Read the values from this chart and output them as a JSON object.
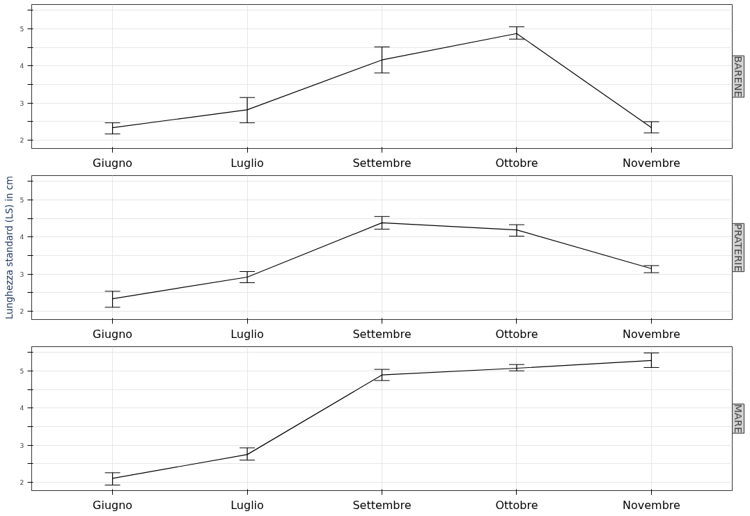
{
  "chart_data": [
    {
      "type": "line",
      "title": "BARENE",
      "categories": [
        "Giugno",
        "Luglio",
        "Settembre",
        "Ottobre",
        "Novembre"
      ],
      "series": [
        {
          "color": "#000000",
          "values": [
            2.34,
            2.82,
            4.16,
            4.87,
            2.34
          ],
          "errors": [
            [
              2.17,
              2.47
            ],
            [
              2.47,
              3.15
            ],
            [
              3.81,
              4.51
            ],
            [
              4.72,
              5.05
            ],
            [
              2.2,
              2.5
            ]
          ]
        }
      ],
      "ylim": [
        1.78,
        5.65
      ],
      "yticks": [
        2,
        {
          "value": 2.5,
          "label": null
        },
        3,
        {
          "value": 3.5,
          "label": null
        },
        4,
        {
          "value": 4.5,
          "label": null
        },
        5,
        {
          "value": 5.5,
          "label": null
        }
      ],
      "grid": true,
      "marker": "none",
      "line_style": "solid"
    },
    {
      "type": "line",
      "title": "PRATERIE",
      "ylabel": "Lunghezza standard (LS) in cm",
      "categories": [
        "Giugno",
        "Luglio",
        "Settembre",
        "Ottobre",
        "Novembre"
      ],
      "series": [
        {
          "color": "#000000",
          "values": [
            2.34,
            2.92,
            4.38,
            4.19,
            3.15
          ],
          "errors": [
            [
              2.11,
              2.54
            ],
            [
              2.77,
              3.07
            ],
            [
              4.21,
              4.55
            ],
            [
              4.02,
              4.33
            ],
            [
              3.04,
              3.23
            ]
          ]
        }
      ],
      "ylim": [
        1.78,
        5.65
      ],
      "yticks": [
        2,
        {
          "value": 2.5,
          "label": null
        },
        3,
        {
          "value": 3.5,
          "label": null
        },
        4,
        {
          "value": 4.5,
          "label": null
        },
        5,
        {
          "value": 5.5,
          "label": null
        }
      ],
      "grid": true,
      "marker": "none",
      "line_style": "solid"
    },
    {
      "type": "line",
      "title": "MARE",
      "categories": [
        "Giugno",
        "Luglio",
        "Settembre",
        "Ottobre",
        "Novembre"
      ],
      "series": [
        {
          "color": "#000000",
          "values": [
            2.11,
            2.75,
            4.89,
            5.07,
            5.28
          ],
          "errors": [
            [
              1.93,
              2.26
            ],
            [
              2.6,
              2.93
            ],
            [
              4.74,
              5.04
            ],
            [
              5.0,
              5.17
            ],
            [
              5.09,
              5.48
            ]
          ]
        }
      ],
      "ylim": [
        1.78,
        5.65
      ],
      "yticks": [
        2,
        {
          "value": 2.5,
          "label": null
        },
        3,
        {
          "value": 3.5,
          "label": null
        },
        4,
        {
          "value": 4.5,
          "label": null
        },
        5,
        {
          "value": 5.5,
          "label": null
        }
      ],
      "grid": true,
      "marker": "none",
      "line_style": "solid"
    }
  ]
}
